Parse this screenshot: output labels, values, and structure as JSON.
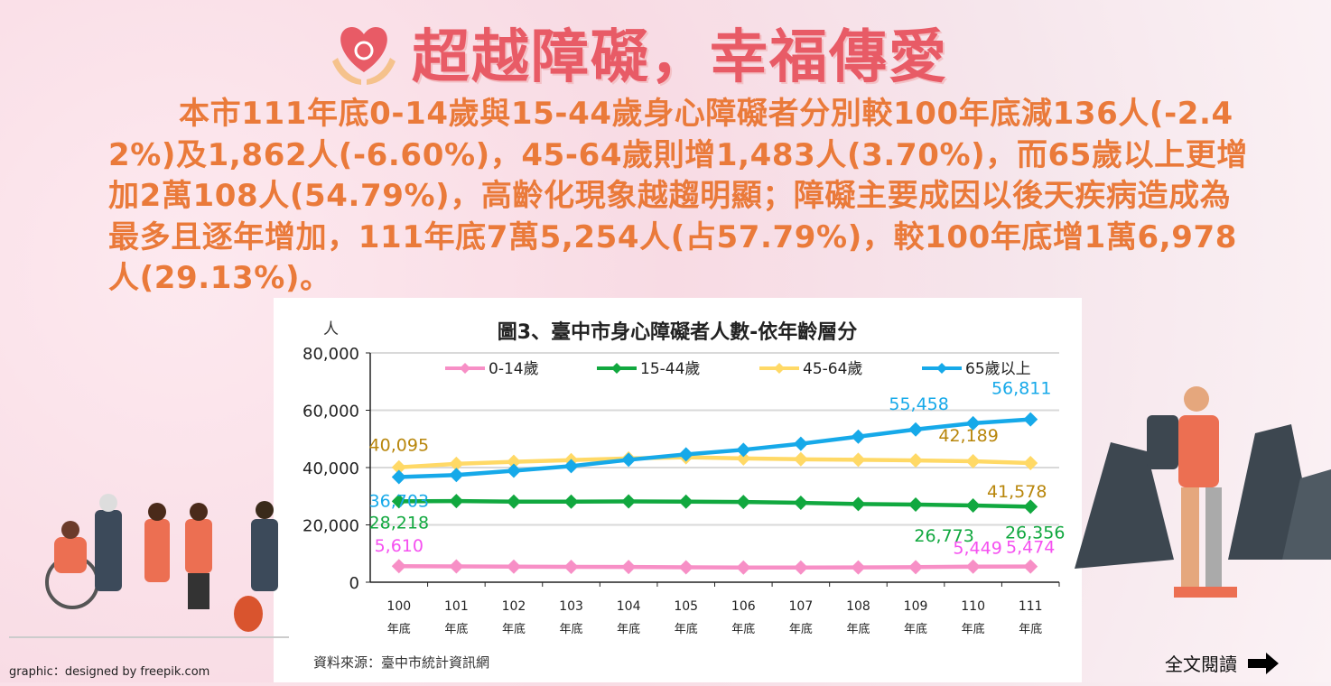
{
  "title": "超越障礙，幸福傳愛",
  "paragraph": "本市111年底0-14歲與15-44歲身心障礙者分別較100年底減136人(-2.42%)及1,862人(-6.60%)，45-64歲則增1,483人(3.70%)，而65歲以上更增加2萬108人(54.79%)，高齡化現象越趨明顯；障礙主要成因以後天疾病造成為最多且逐年增加，111年底7萬5,254人(占57.79%)，較100年底增1萬6,978人(29.13%)。",
  "source": "資料來源：臺中市統計資訊網",
  "credit": "graphic：designed by freepik.com",
  "read_more": "全文閱讀",
  "chart_data": {
    "type": "line",
    "title": "圖3、臺中市身心障礙者人數-依年齡層分",
    "ylabel": "人",
    "ylim": [
      0,
      80000
    ],
    "yticks": [
      "0",
      "20,000",
      "40,000",
      "60,000",
      "80,000"
    ],
    "categories": [
      [
        "100",
        "年底"
      ],
      [
        "101",
        "年底"
      ],
      [
        "102",
        "年底"
      ],
      [
        "103",
        "年底"
      ],
      [
        "104",
        "年底"
      ],
      [
        "105",
        "年底"
      ],
      [
        "106",
        "年底"
      ],
      [
        "107",
        "年底"
      ],
      [
        "108",
        "年底"
      ],
      [
        "109",
        "年底"
      ],
      [
        "110",
        "年底"
      ],
      [
        "111",
        "年底"
      ]
    ],
    "grid": true,
    "legend": "top",
    "series": [
      {
        "name": "0-14歲",
        "color": "#f78fc6",
        "label_color": "#f550f0",
        "values": [
          5610,
          5500,
          5450,
          5350,
          5300,
          5200,
          5100,
          5100,
          5150,
          5250,
          5449,
          5474
        ],
        "labels": {
          "0": "5,610",
          "10": "5,449",
          "11": "5,474"
        }
      },
      {
        "name": "15-44歲",
        "color": "#11a83f",
        "label_color": "#11a83f",
        "values": [
          28218,
          28300,
          28100,
          28100,
          28200,
          28100,
          28000,
          27700,
          27300,
          27100,
          26773,
          26356
        ],
        "labels": {
          "0": "28,218",
          "10": "26,773",
          "11": "26,356"
        }
      },
      {
        "name": "45-64歲",
        "color": "#ffd966",
        "label_color": "#b8860b",
        "values": [
          40095,
          41300,
          42000,
          42600,
          43200,
          43600,
          43200,
          42900,
          42700,
          42500,
          42189,
          41578
        ],
        "labels": {
          "0": "40,095",
          "10": "42,189",
          "11": "41,578"
        }
      },
      {
        "name": "65歲以上",
        "color": "#16a9e9",
        "label_color": "#16a9e9",
        "values": [
          36703,
          37400,
          38900,
          40500,
          42700,
          44600,
          46200,
          48300,
          50800,
          53300,
          55458,
          56811
        ],
        "labels": {
          "0": "36,703",
          "10": "55,458",
          "11": "56,811"
        }
      }
    ]
  }
}
